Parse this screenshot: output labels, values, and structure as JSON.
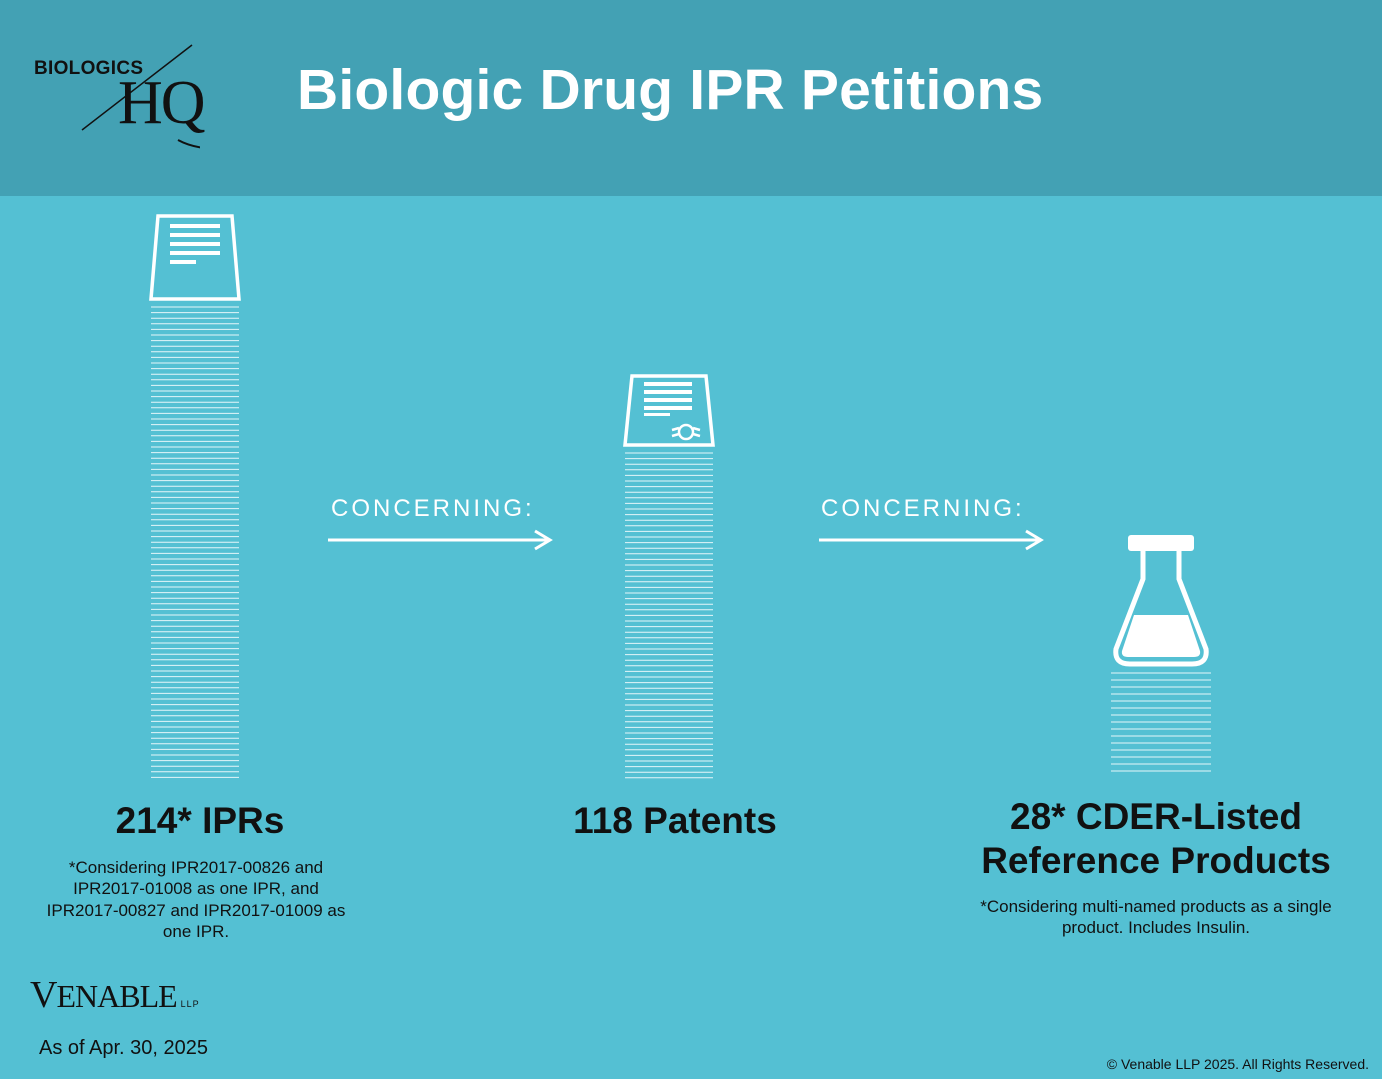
{
  "header": {
    "logo_top": "BIOLOGICS",
    "logo_main": "HQ",
    "title": "Biologic Drug IPR Petitions"
  },
  "flow": {
    "arrow_labels": [
      "CONCERNING:",
      "CONCERNING:"
    ],
    "ipr": {
      "label": "214* IPRs",
      "note": "*Considering IPR2017-00826 and IPR2017-01008 as one IPR, and IPR2017-00827 and IPR2017-01009 as one IPR.",
      "icon": "document-icon"
    },
    "patents": {
      "label": "118 Patents",
      "icon": "certificate-icon"
    },
    "products": {
      "label_line1": "28* CDER-Listed",
      "label_line2": "Reference Products",
      "note": "*Considering multi-named products as a single product.  Includes Insulin.",
      "icon": "flask-icon"
    }
  },
  "footer": {
    "firm_logo_v": "V",
    "firm_logo_rest": "ENABLE",
    "firm_logo_llp": "LLP",
    "as_of": "As of Apr. 30, 2025",
    "copyright": "© Venable LLP 2025. All Rights Reserved."
  },
  "colors": {
    "header_bg": "#43a1b4",
    "body_bg": "#54c0d3",
    "icon": "#ffffff",
    "text_dark": "#111111"
  }
}
